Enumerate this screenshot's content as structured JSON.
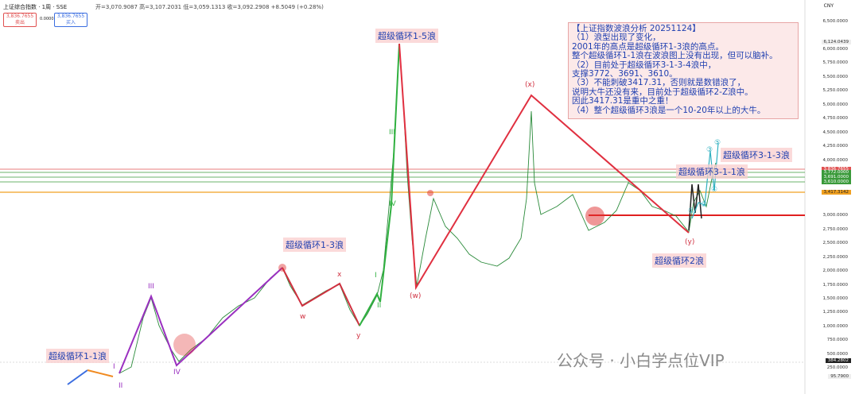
{
  "header": {
    "symbol": "上证综合指数 · 1周 · SSE",
    "ohlc": "开=3,070.9087 高=3,107.2031 低=3,059.1313 收=3,092.2908 +8.5049 (+0.28%)",
    "sell_price": "3,836.7655",
    "sell": "卖出",
    "spread": "0.0000",
    "buy_price": "3,836.7655",
    "buy": "买入",
    "currency": "CNY"
  },
  "note": {
    "title": "【上证指数波浪分析 20251124】",
    "lines": [
      "（1）浪型出现了变化，",
      "2001年的高点是超级循环1-3浪的高点。",
      "整个超级循环1-1浪在波浪图上没有出现，但可以脑补。",
      "（2）目前处于超级循环3-1-3-4浪中，",
      "支撑3772、3691、3610。",
      "（3）不能刺破3417.31，否则就是数错浪了，",
      "说明大牛还没有来，目前处于超级循环2-Z浪中。",
      "因此3417.31是重中之重！",
      "（4）整个超级循环3浪是一个10-20年以上的大牛。"
    ]
  },
  "labels": [
    "超级循环1-5浪",
    "超级循环1-3浪",
    "超级循环1-1浪",
    "超级循环2浪",
    "超级循环3-1-1浪",
    "超级循环3-1-3浪"
  ],
  "waves": [
    "III",
    "IV",
    "I",
    "II",
    "III",
    "IV",
    "I",
    "II",
    "w",
    "x",
    "y",
    "(w)",
    "(x)",
    "(y)",
    "①",
    "②",
    "③",
    "④",
    "⑤"
  ],
  "price_axis": [
    "6,500.0000",
    "6,000.0000",
    "5,750.0000",
    "5,500.0000",
    "5,250.0000",
    "5,000.0000",
    "4,750.0000",
    "4,500.0000",
    "4,250.0000",
    "4,000.0000",
    "3,000.0000",
    "2,750.0000",
    "2,500.0000",
    "2,250.0000",
    "2,000.0000",
    "1,750.0000",
    "1,500.0000",
    "1,250.0000",
    "1,000.0000",
    "750.0000",
    "500.0000",
    "250.0000"
  ],
  "price_tags": [
    "6,124.0439",
    "3,836.7655",
    "3,772.0000",
    "3,691.0000",
    "3,610.0000",
    "3,417.3142",
    "384.2802",
    "95.7900"
  ],
  "watermark": "公众号 · 小白学点位VIP"
}
